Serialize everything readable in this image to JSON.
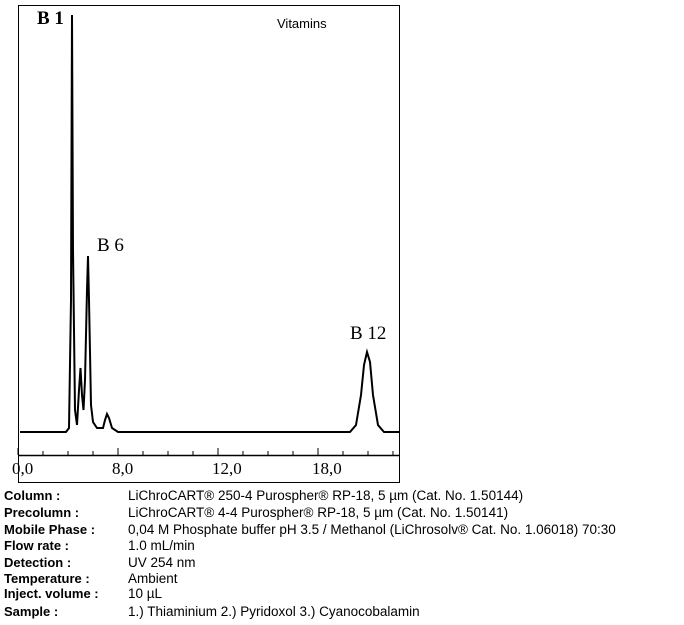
{
  "figure": {
    "title": "Vitamins",
    "peaks": [
      "B 1",
      "B 6",
      "B 12"
    ],
    "x_tick_labels": [
      "0,0",
      "8,0",
      "12,0",
      "18,0"
    ]
  },
  "table": {
    "rows": [
      [
        "Column :",
        "LiChroCART® 250-4 Purospher® RP-18, 5 µm  (Cat. No. 1.50144)"
      ],
      [
        "Precolumn :",
        "LiChroCART® 4-4 Purospher® RP-18, 5 µm  (Cat. No. 1.50141)"
      ],
      [
        "Mobile Phase :",
        "0,04 M Phosphate buffer pH 3.5 / Methanol (LiChrosolv® Cat. No. 1.06018) 70:30"
      ],
      [
        "Flow rate :",
        "1.0 mL/min"
      ],
      [
        "Detection :",
        "UV 254 nm"
      ],
      [
        "Temperature :",
        "Ambient"
      ],
      [
        "Inject. volume :",
        "10 µL"
      ],
      [
        "Sample :",
        "1.) Thiaminium 2.) Pyridoxol 3.) Cyanocobalamin"
      ]
    ]
  }
}
